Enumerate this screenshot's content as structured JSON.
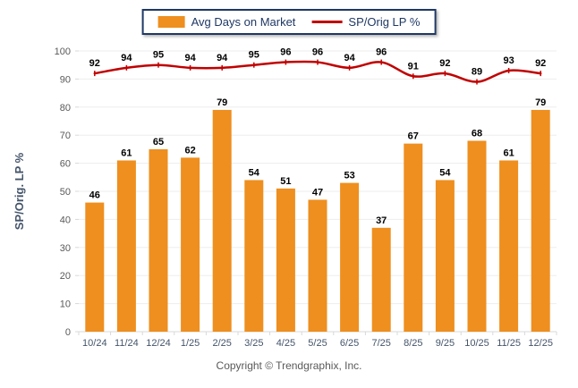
{
  "chart_data": {
    "type": "combo",
    "categories": [
      "10/24",
      "11/24",
      "12/24",
      "1/25",
      "2/25",
      "3/25",
      "4/25",
      "5/25",
      "6/25",
      "7/25",
      "8/25",
      "9/25",
      "10/25",
      "11/25",
      "12/25"
    ],
    "series": [
      {
        "name": "Avg Days on Market",
        "type": "bar",
        "color": "#EE8F1F",
        "values": [
          46,
          61,
          65,
          62,
          79,
          54,
          51,
          47,
          53,
          37,
          67,
          54,
          68,
          61,
          79
        ]
      },
      {
        "name": "SP/Orig LP %",
        "type": "line",
        "color": "#C00000",
        "values": [
          92,
          94,
          95,
          94,
          94,
          95,
          96,
          96,
          94,
          96,
          91,
          92,
          89,
          93,
          92
        ]
      }
    ],
    "title": "",
    "xlabel": "",
    "ylabel": "SP/Orig. LP %",
    "ylim": [
      0,
      100
    ],
    "yticks": [
      0,
      10,
      20,
      30,
      40,
      50,
      60,
      70,
      80,
      90,
      100
    ],
    "grid": true,
    "legend_position": "top-center",
    "value_labels": true,
    "footer": "Copyright © Trendgraphix, Inc."
  },
  "colors": {
    "bar": "#EE8F1F",
    "line": "#C00000",
    "legend_border": "#1F3864",
    "grid_line": "#EDEDED",
    "axis_line": "#D9D9D9",
    "y_tick_label": "#595959",
    "x_tick_label": "#44546A",
    "value_label": "#000000",
    "axis_title": "#44546A",
    "footer_text": "#595959"
  }
}
